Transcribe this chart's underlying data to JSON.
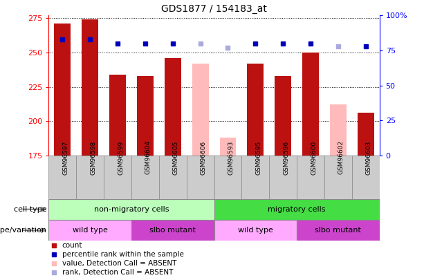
{
  "title": "GDS1877 / 154183_at",
  "samples": [
    "GSM96597",
    "GSM96598",
    "GSM96599",
    "GSM96604",
    "GSM96605",
    "GSM96606",
    "GSM96593",
    "GSM96595",
    "GSM96596",
    "GSM96600",
    "GSM96602",
    "GSM96603"
  ],
  "count_values": [
    271,
    274,
    234,
    233,
    246,
    null,
    null,
    242,
    233,
    250,
    null,
    206
  ],
  "count_absent": [
    null,
    null,
    null,
    null,
    null,
    242,
    188,
    null,
    null,
    null,
    212,
    null
  ],
  "percentile_values": [
    83,
    83,
    80,
    80,
    80,
    null,
    null,
    80,
    80,
    80,
    null,
    78
  ],
  "percentile_absent": [
    null,
    null,
    null,
    null,
    null,
    80,
    77,
    null,
    null,
    null,
    78,
    null
  ],
  "ylim_left": [
    175,
    277
  ],
  "ylim_right": [
    0,
    100
  ],
  "yticks_left": [
    175,
    200,
    225,
    250,
    275
  ],
  "yticks_right": [
    0,
    25,
    50,
    75,
    100
  ],
  "ytick_labels_right": [
    "0",
    "25",
    "50",
    "75",
    "100%"
  ],
  "bar_width": 0.6,
  "bar_color_present": "#bb1111",
  "bar_color_absent": "#ffbbbb",
  "dot_color_present": "#0000bb",
  "dot_color_absent": "#aaaadd",
  "cell_type_groups": [
    {
      "label": "non-migratory cells",
      "start": 0,
      "end": 6,
      "color": "#bbffbb"
    },
    {
      "label": "migratory cells",
      "start": 6,
      "end": 12,
      "color": "#44dd44"
    }
  ],
  "genotype_groups": [
    {
      "label": "wild type",
      "start": 0,
      "end": 3,
      "color": "#ffaaff"
    },
    {
      "label": "slbo mutant",
      "start": 3,
      "end": 6,
      "color": "#cc44cc"
    },
    {
      "label": "wild type",
      "start": 6,
      "end": 9,
      "color": "#ffaaff"
    },
    {
      "label": "slbo mutant",
      "start": 9,
      "end": 12,
      "color": "#cc44cc"
    }
  ],
  "legend_items": [
    {
      "label": "count",
      "color": "#bb1111"
    },
    {
      "label": "percentile rank within the sample",
      "color": "#0000bb"
    },
    {
      "label": "value, Detection Call = ABSENT",
      "color": "#ffbbbb"
    },
    {
      "label": "rank, Detection Call = ABSENT",
      "color": "#aaaadd"
    }
  ],
  "background_color": "#ffffff",
  "grid_color": "#000000",
  "sample_box_color": "#cccccc",
  "sample_box_edge": "#888888"
}
